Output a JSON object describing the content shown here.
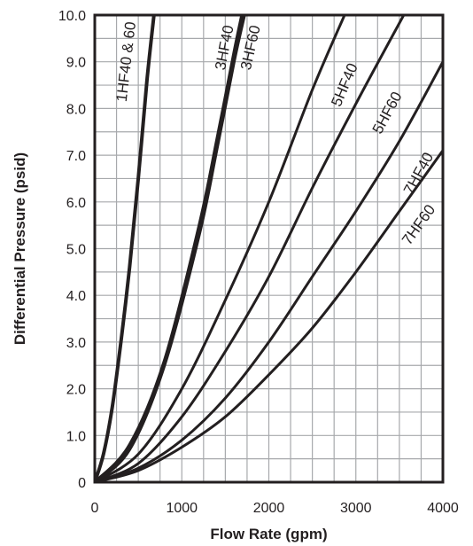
{
  "chart_data": {
    "type": "line",
    "title": "",
    "xlabel": "Flow Rate (gpm)",
    "ylabel": "Differential Pressure (psid)",
    "xlim": [
      0,
      4000
    ],
    "ylim": [
      0,
      10
    ],
    "grid": true,
    "legend": "none",
    "x_ticks": [
      {
        "value": 0,
        "label": "0"
      },
      {
        "value": 1000,
        "label": "1000"
      },
      {
        "value": 2000,
        "label": "2000"
      },
      {
        "value": 3000,
        "label": "3000"
      },
      {
        "value": 4000,
        "label": "4000"
      }
    ],
    "y_ticks": [
      {
        "value": 0,
        "label": "0"
      },
      {
        "value": 1,
        "label": "1.0"
      },
      {
        "value": 2,
        "label": "2.0"
      },
      {
        "value": 3,
        "label": "3.0"
      },
      {
        "value": 4,
        "label": "4.0"
      },
      {
        "value": 5,
        "label": "5.0"
      },
      {
        "value": 6,
        "label": "6.0"
      },
      {
        "value": 7,
        "label": "7.0"
      },
      {
        "value": 8,
        "label": "8.0"
      },
      {
        "value": 9,
        "label": "9.0"
      },
      {
        "value": 10,
        "label": "10.0"
      }
    ],
    "series": [
      {
        "name": "1HF40 & 60",
        "x": [
          0,
          100,
          200,
          300,
          400,
          500,
          600,
          680
        ],
        "y": [
          0,
          0.6,
          1.6,
          3.0,
          4.6,
          6.5,
          8.6,
          10.0
        ],
        "width": 4,
        "label_x": 370,
        "label_y": 9.0
      },
      {
        "name": "3HF40",
        "x": [
          0,
          400,
          800,
          1200,
          1400,
          1600,
          1690
        ],
        "y": [
          0,
          0.8,
          2.6,
          5.5,
          7.3,
          9.2,
          10.0
        ],
        "width": 3.5,
        "label_x": 1500,
        "label_y": 9.3
      },
      {
        "name": "3HF60",
        "x": [
          0,
          400,
          800,
          1200,
          1400,
          1600,
          1720
        ],
        "y": [
          0,
          0.7,
          2.5,
          5.3,
          7.1,
          9.0,
          10.0
        ],
        "width": 3.5,
        "label_x": 1800,
        "label_y": 9.3
      },
      {
        "name": "5HF40",
        "x": [
          0,
          500,
          1000,
          1500,
          2000,
          2500,
          2870
        ],
        "y": [
          0,
          0.6,
          2.0,
          3.9,
          6.0,
          8.4,
          10.0
        ],
        "width": 3,
        "label_x": 2880,
        "label_y": 8.5
      },
      {
        "name": "5HF60",
        "x": [
          0,
          500,
          1000,
          1500,
          2000,
          2500,
          3000,
          3550
        ],
        "y": [
          0,
          0.4,
          1.4,
          2.8,
          4.4,
          6.3,
          8.1,
          10.0
        ],
        "width": 3,
        "label_x": 3370,
        "label_y": 7.9
      },
      {
        "name": "7HF40",
        "x": [
          0,
          500,
          1000,
          1500,
          2000,
          2500,
          3000,
          3500,
          4000
        ],
        "y": [
          0,
          0.3,
          0.9,
          1.8,
          3.0,
          4.4,
          5.8,
          7.3,
          9.0
        ],
        "width": 3,
        "label_x": 3730,
        "label_y": 6.6
      },
      {
        "name": "7HF60",
        "x": [
          0,
          500,
          1000,
          1500,
          2000,
          2500,
          3000,
          3500,
          4000
        ],
        "y": [
          0,
          0.25,
          0.75,
          1.4,
          2.3,
          3.3,
          4.5,
          5.8,
          7.1
        ],
        "width": 3,
        "label_x": 3730,
        "label_y": 5.5
      }
    ]
  }
}
